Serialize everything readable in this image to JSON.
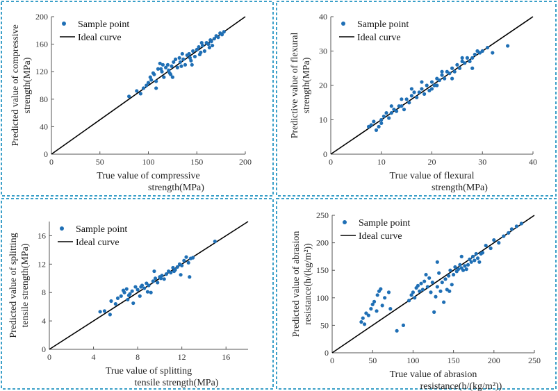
{
  "colors": {
    "border": "#3a9fc8",
    "point": "#1f6fb5",
    "ideal": "#000000"
  },
  "chart_data": [
    {
      "type": "scatter",
      "title": "",
      "xlabel": [
        "True value of compressive",
        "strength(MPa)"
      ],
      "ylabel": [
        "Predicted value of compressive",
        "strength(MPa)"
      ],
      "xlim": [
        0,
        200
      ],
      "ylim": [
        0,
        200
      ],
      "xticks": [
        0,
        50,
        100,
        150,
        200
      ],
      "yticks": [
        0,
        40,
        80,
        120,
        160,
        200
      ],
      "legend": {
        "position": "top-left",
        "entries": [
          "Sample point",
          "Ideal curve"
        ]
      },
      "ideal_curve": [
        [
          0,
          0
        ],
        [
          200,
          200
        ]
      ],
      "points": [
        [
          80,
          84
        ],
        [
          88,
          92
        ],
        [
          92,
          88
        ],
        [
          95,
          96
        ],
        [
          98,
          100
        ],
        [
          100,
          104
        ],
        [
          102,
          112
        ],
        [
          105,
          118
        ],
        [
          106,
          116
        ],
        [
          108,
          106
        ],
        [
          110,
          124
        ],
        [
          112,
          132
        ],
        [
          114,
          120
        ],
        [
          116,
          112
        ],
        [
          118,
          126
        ],
        [
          120,
          130
        ],
        [
          121,
          122
        ],
        [
          122,
          118
        ],
        [
          124,
          128
        ],
        [
          126,
          134
        ],
        [
          128,
          138
        ],
        [
          130,
          126
        ],
        [
          132,
          140
        ],
        [
          134,
          128
        ],
        [
          136,
          138
        ],
        [
          138,
          130
        ],
        [
          140,
          144
        ],
        [
          142,
          146
        ],
        [
          144,
          136
        ],
        [
          146,
          150
        ],
        [
          148,
          142
        ],
        [
          150,
          152
        ],
        [
          152,
          156
        ],
        [
          154,
          148
        ],
        [
          156,
          158
        ],
        [
          158,
          150
        ],
        [
          160,
          162
        ],
        [
          162,
          160
        ],
        [
          164,
          166
        ],
        [
          166,
          158
        ],
        [
          168,
          168
        ],
        [
          170,
          172
        ],
        [
          172,
          170
        ],
        [
          174,
          176
        ],
        [
          176,
          174
        ],
        [
          178,
          178
        ],
        [
          108,
          96
        ],
        [
          115,
          130
        ],
        [
          125,
          112
        ],
        [
          135,
          146
        ],
        [
          145,
          130
        ],
        [
          155,
          162
        ],
        [
          165,
          164
        ],
        [
          103,
          108
        ],
        [
          113,
          124
        ],
        [
          123,
          116
        ],
        [
          133,
          134
        ],
        [
          143,
          140
        ],
        [
          153,
          145
        ],
        [
          163,
          155
        ]
      ]
    },
    {
      "type": "scatter",
      "title": "",
      "xlabel": [
        "True value of flexural",
        "strength(MPa)"
      ],
      "ylabel": [
        "Predictive value of flexural",
        "strength(MPa)"
      ],
      "xlim": [
        0,
        40
      ],
      "ylim": [
        0,
        40
      ],
      "xticks": [
        0,
        10,
        20,
        30,
        40
      ],
      "yticks": [
        0,
        10,
        20,
        30,
        40
      ],
      "legend": {
        "position": "top-left",
        "entries": [
          "Sample point",
          "Ideal curve"
        ]
      },
      "ideal_curve": [
        [
          0,
          0
        ],
        [
          40,
          40
        ]
      ],
      "points": [
        [
          7.5,
          8
        ],
        [
          8,
          8.5
        ],
        [
          8.5,
          9.5
        ],
        [
          9,
          7
        ],
        [
          9.5,
          8
        ],
        [
          10,
          10
        ],
        [
          10.5,
          11
        ],
        [
          11,
          12
        ],
        [
          11.5,
          10.5
        ],
        [
          12,
          12
        ],
        [
          12.5,
          13
        ],
        [
          13,
          12.5
        ],
        [
          13.5,
          14
        ],
        [
          14,
          14
        ],
        [
          14.5,
          13
        ],
        [
          15,
          16
        ],
        [
          15.5,
          15
        ],
        [
          16,
          17
        ],
        [
          16.5,
          18
        ],
        [
          17,
          16.5
        ],
        [
          17.5,
          18
        ],
        [
          18,
          19
        ],
        [
          18.5,
          17.5
        ],
        [
          19,
          20
        ],
        [
          19.5,
          18.5
        ],
        [
          20,
          21
        ],
        [
          20.5,
          20
        ],
        [
          21,
          22
        ],
        [
          21.5,
          21.5
        ],
        [
          22,
          23
        ],
        [
          22.5,
          22
        ],
        [
          23,
          24
        ],
        [
          23.5,
          23.5
        ],
        [
          24,
          25
        ],
        [
          24.5,
          24
        ],
        [
          25,
          26
        ],
        [
          25.5,
          25
        ],
        [
          26,
          27
        ],
        [
          26.5,
          26.5
        ],
        [
          27,
          28
        ],
        [
          27.5,
          27
        ],
        [
          28,
          28
        ],
        [
          28.5,
          29
        ],
        [
          29,
          30
        ],
        [
          29.5,
          29.5
        ],
        [
          30,
          30
        ],
        [
          31,
          31
        ],
        [
          32,
          29.5
        ],
        [
          35,
          31.5
        ],
        [
          16,
          19
        ],
        [
          18,
          21
        ],
        [
          20,
          19
        ],
        [
          22,
          24
        ],
        [
          24,
          22
        ],
        [
          26,
          28
        ],
        [
          12,
          14
        ],
        [
          14,
          16
        ],
        [
          10,
          9
        ],
        [
          28,
          25
        ],
        [
          21,
          20
        ]
      ]
    },
    {
      "type": "scatter",
      "title": "",
      "xlabel": [
        "True value of splitting",
        "tensile strength(MPa)"
      ],
      "ylabel": [
        "Predicted value of splitting",
        "tensile strength(MPa)"
      ],
      "xlim": [
        0,
        18
      ],
      "ylim": [
        0,
        18
      ],
      "xticks": [
        0,
        4,
        8,
        12,
        16
      ],
      "yticks": [
        0,
        4,
        8,
        12,
        16
      ],
      "legend": {
        "position": "top-left",
        "entries": [
          "Sample point",
          "Ideal curve"
        ]
      },
      "ideal_curve": [
        [
          0,
          0
        ],
        [
          18,
          18
        ]
      ],
      "points": [
        [
          4.6,
          5.3
        ],
        [
          5,
          5.4
        ],
        [
          5.5,
          4.9
        ],
        [
          5.6,
          6.8
        ],
        [
          6,
          6.4
        ],
        [
          6.2,
          7.2
        ],
        [
          6.5,
          7.5
        ],
        [
          6.8,
          8
        ],
        [
          7,
          8.5
        ],
        [
          7.1,
          7
        ],
        [
          7.3,
          7.8
        ],
        [
          7.5,
          8.2
        ],
        [
          7.6,
          6.5
        ],
        [
          7.8,
          8.8
        ],
        [
          8,
          8.4
        ],
        [
          8.2,
          7.5
        ],
        [
          8.4,
          9
        ],
        [
          8.6,
          8.6
        ],
        [
          8.8,
          9.3
        ],
        [
          9,
          9
        ],
        [
          9.2,
          8
        ],
        [
          9.4,
          9.6
        ],
        [
          9.6,
          10
        ],
        [
          9.8,
          9.4
        ],
        [
          10,
          10.2
        ],
        [
          10.2,
          10.4
        ],
        [
          10.4,
          9.9
        ],
        [
          10.6,
          10.6
        ],
        [
          10.8,
          11
        ],
        [
          11,
          10.8
        ],
        [
          11.2,
          11.5
        ],
        [
          11.4,
          11.2
        ],
        [
          11.6,
          11.6
        ],
        [
          11.8,
          12
        ],
        [
          12,
          11.8
        ],
        [
          12.2,
          12.5
        ],
        [
          12.4,
          13
        ],
        [
          12.6,
          12.2
        ],
        [
          12.8,
          12.8
        ],
        [
          12.7,
          10.2
        ],
        [
          11.9,
          10.5
        ],
        [
          13,
          12.9
        ],
        [
          15,
          15.2
        ],
        [
          6.7,
          8.3
        ],
        [
          9.5,
          11
        ],
        [
          8.3,
          8.8
        ],
        [
          10.1,
          10
        ],
        [
          7.2,
          7.6
        ],
        [
          8.9,
          8.1
        ],
        [
          11.3,
          11
        ]
      ]
    },
    {
      "type": "scatter",
      "title": "",
      "xlabel": [
        "True value of abrasion",
        "resistance(h/(kg/m²))"
      ],
      "ylabel": [
        "Predicted value of abrasion",
        "resistance(h/(kg/m²))"
      ],
      "xlim": [
        0,
        250
      ],
      "ylim": [
        0,
        250
      ],
      "xticks": [
        0,
        50,
        100,
        150,
        200,
        250
      ],
      "yticks": [
        0,
        50,
        100,
        150,
        200,
        250
      ],
      "legend": {
        "position": "top-left",
        "entries": [
          "Sample point",
          "Ideal curve"
        ]
      },
      "ideal_curve": [
        [
          0,
          0
        ],
        [
          250,
          250
        ]
      ],
      "points": [
        [
          36,
          56
        ],
        [
          38,
          63
        ],
        [
          40,
          52
        ],
        [
          42,
          72
        ],
        [
          45,
          68
        ],
        [
          48,
          80
        ],
        [
          50,
          88
        ],
        [
          52,
          93
        ],
        [
          55,
          76
        ],
        [
          56,
          105
        ],
        [
          58,
          112
        ],
        [
          60,
          116
        ],
        [
          62,
          86
        ],
        [
          65,
          100
        ],
        [
          70,
          110
        ],
        [
          72,
          80
        ],
        [
          80,
          40
        ],
        [
          88,
          50
        ],
        [
          95,
          95
        ],
        [
          98,
          105
        ],
        [
          100,
          110
        ],
        [
          102,
          100
        ],
        [
          104,
          118
        ],
        [
          106,
          122
        ],
        [
          108,
          112
        ],
        [
          110,
          126
        ],
        [
          112,
          115
        ],
        [
          114,
          130
        ],
        [
          116,
          142
        ],
        [
          118,
          120
        ],
        [
          120,
          136
        ],
        [
          122,
          110
        ],
        [
          124,
          128
        ],
        [
          126,
          74
        ],
        [
          128,
          102
        ],
        [
          130,
          120
        ],
        [
          132,
          145
        ],
        [
          134,
          112
        ],
        [
          136,
          128
        ],
        [
          138,
          92
        ],
        [
          140,
          134
        ],
        [
          142,
          115
        ],
        [
          144,
          140
        ],
        [
          146,
          150
        ],
        [
          148,
          124
        ],
        [
          150,
          142
        ],
        [
          152,
          156
        ],
        [
          154,
          148
        ],
        [
          156,
          152
        ],
        [
          158,
          160
        ],
        [
          160,
          154
        ],
        [
          162,
          150
        ],
        [
          164,
          158
        ],
        [
          166,
          152
        ],
        [
          168,
          160
        ],
        [
          170,
          170
        ],
        [
          172,
          165
        ],
        [
          174,
          175
        ],
        [
          176,
          168
        ],
        [
          178,
          180
        ],
        [
          180,
          172
        ],
        [
          182,
          165
        ],
        [
          184,
          180
        ],
        [
          186,
          182
        ],
        [
          190,
          195
        ],
        [
          196,
          190
        ],
        [
          200,
          205
        ],
        [
          206,
          200
        ],
        [
          212,
          212
        ],
        [
          218,
          218
        ],
        [
          222,
          225
        ],
        [
          228,
          230
        ],
        [
          234,
          235
        ],
        [
          130,
          165
        ],
        [
          145,
          112
        ],
        [
          160,
          175
        ]
      ]
    }
  ]
}
